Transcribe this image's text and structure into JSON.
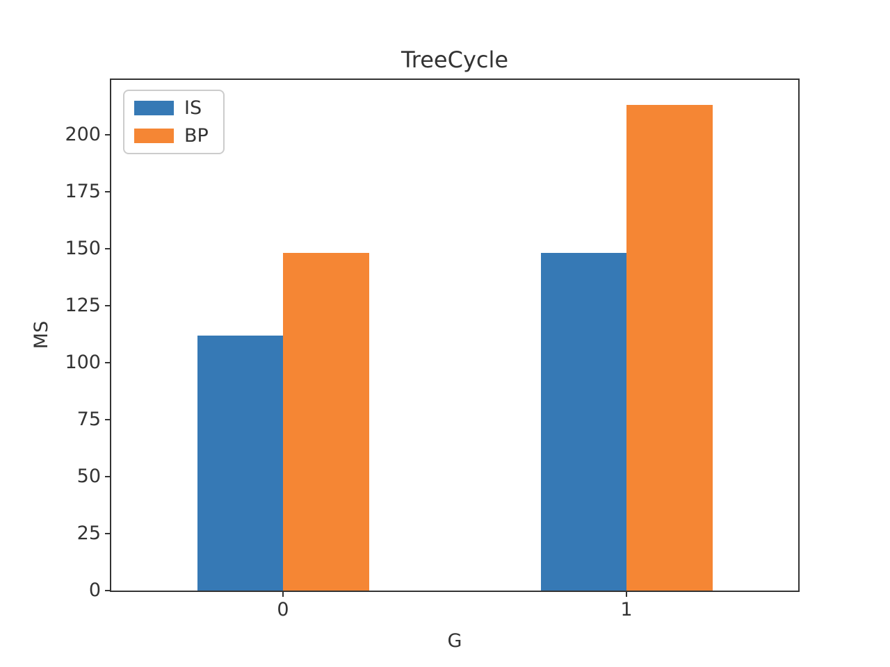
{
  "chart_data": {
    "type": "bar",
    "title": "TreeCycle",
    "xlabel": "G",
    "ylabel": "MS",
    "categories": [
      "0",
      "1"
    ],
    "series": [
      {
        "name": "IS",
        "color": "#3679b5",
        "values": [
          112,
          148
        ]
      },
      {
        "name": "BP",
        "color": "#f58634",
        "values": [
          148,
          213
        ]
      }
    ],
    "ylim": [
      0,
      224
    ],
    "yticks": [
      0,
      25,
      50,
      75,
      100,
      125,
      150,
      175,
      200
    ],
    "grid": false,
    "legend_position": "upper left",
    "bar_group_width_fraction": 0.5,
    "colors": {
      "axis": "#333333",
      "legend_border": "#cccccc",
      "background": "#ffffff"
    }
  }
}
